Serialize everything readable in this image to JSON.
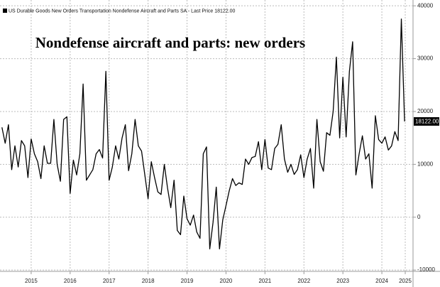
{
  "chart_data": {
    "type": "line",
    "title": "Nondefense aircraft and parts: new orders",
    "last_price_label": "18122.00",
    "xlim": [
      2014.7,
      2025.3
    ],
    "xticks": [
      {
        "value": 2015.5,
        "label": "2015"
      },
      {
        "value": 2016.5,
        "label": "2016"
      },
      {
        "value": 2017.5,
        "label": "2017"
      },
      {
        "value": 2018.5,
        "label": "2018"
      },
      {
        "value": 2019.5,
        "label": "2019"
      },
      {
        "value": 2020.5,
        "label": "2020"
      },
      {
        "value": 2021.5,
        "label": "2021"
      },
      {
        "value": 2022.5,
        "label": "2022"
      },
      {
        "value": 2023.5,
        "label": "2023"
      },
      {
        "value": 2024.5,
        "label": "2024"
      },
      {
        "value": 2025.1,
        "label": "2025"
      }
    ],
    "ylim": [
      -10250,
      41100
    ],
    "yticks": [
      -10000,
      0,
      10000,
      20000,
      30000,
      40000
    ],
    "grid": true,
    "x": [
      2014.75,
      2014.833,
      2014.917,
      2015.0,
      2015.083,
      2015.167,
      2015.25,
      2015.333,
      2015.417,
      2015.5,
      2015.583,
      2015.667,
      2015.75,
      2015.833,
      2015.917,
      2016.0,
      2016.083,
      2016.167,
      2016.25,
      2016.333,
      2016.417,
      2016.5,
      2016.583,
      2016.667,
      2016.75,
      2016.833,
      2016.917,
      2017.0,
      2017.083,
      2017.167,
      2017.25,
      2017.333,
      2017.417,
      2017.5,
      2017.583,
      2017.667,
      2017.75,
      2017.833,
      2017.917,
      2018.0,
      2018.083,
      2018.167,
      2018.25,
      2018.333,
      2018.417,
      2018.5,
      2018.583,
      2018.667,
      2018.75,
      2018.833,
      2018.917,
      2019.0,
      2019.083,
      2019.167,
      2019.25,
      2019.333,
      2019.417,
      2019.5,
      2019.583,
      2019.667,
      2019.75,
      2019.833,
      2019.917,
      2020.0,
      2020.083,
      2020.167,
      2020.25,
      2020.333,
      2020.417,
      2020.5,
      2020.583,
      2020.667,
      2020.75,
      2020.833,
      2020.917,
      2021.0,
      2021.083,
      2021.167,
      2021.25,
      2021.333,
      2021.417,
      2021.5,
      2021.583,
      2021.667,
      2021.75,
      2021.833,
      2021.917,
      2022.0,
      2022.083,
      2022.167,
      2022.25,
      2022.333,
      2022.417,
      2022.5,
      2022.583,
      2022.667,
      2022.75,
      2022.833,
      2022.917,
      2023.0,
      2023.083,
      2023.167,
      2023.25,
      2023.333,
      2023.417,
      2023.5,
      2023.583,
      2023.667,
      2023.75,
      2023.833,
      2023.917,
      2024.0,
      2024.083,
      2024.167,
      2024.25,
      2024.333,
      2024.417,
      2024.5,
      2024.583,
      2024.667,
      2024.75,
      2024.833,
      2024.917,
      2025.0,
      2025.083
    ],
    "series": [
      {
        "name": "US Durable Goods New Orders Transportation Nondefense Aircraft and Parts SA - Last Price 18122.00",
        "color": "#000000",
        "values": [
          17000,
          14000,
          17500,
          9000,
          13500,
          9500,
          14500,
          13500,
          7500,
          14800,
          12000,
          10500,
          7300,
          13500,
          10200,
          10200,
          18500,
          10000,
          6800,
          18500,
          19000,
          4500,
          10800,
          8000,
          12000,
          25200,
          7000,
          8000,
          9000,
          12000,
          12800,
          11200,
          27600,
          7000,
          9500,
          13500,
          11000,
          15000,
          17500,
          8800,
          12000,
          18500,
          13500,
          12500,
          8000,
          3500,
          10500,
          7500,
          4800,
          4300,
          10000,
          5500,
          1800,
          7000,
          -2500,
          -3300,
          4000,
          -300,
          -1500,
          400,
          -2800,
          -4000,
          12000,
          13300,
          -6000,
          -1000,
          5700,
          -6000,
          -500,
          2200,
          5000,
          7300,
          6000,
          6500,
          6200,
          11000,
          10000,
          11300,
          11500,
          14300,
          9000,
          14700,
          9300,
          9000,
          13000,
          13800,
          17500,
          11000,
          8500,
          10000,
          8100,
          9000,
          11800,
          7500,
          11000,
          13000,
          5500,
          18500,
          10500,
          8700,
          16000,
          15500,
          20000,
          30300,
          15000,
          26500,
          15200,
          27600,
          33200,
          8000,
          12000,
          15400,
          11000,
          12000,
          5500,
          19200,
          14700,
          14000,
          15200,
          12700,
          13500,
          16200,
          14500,
          37500,
          18122
        ]
      }
    ]
  }
}
